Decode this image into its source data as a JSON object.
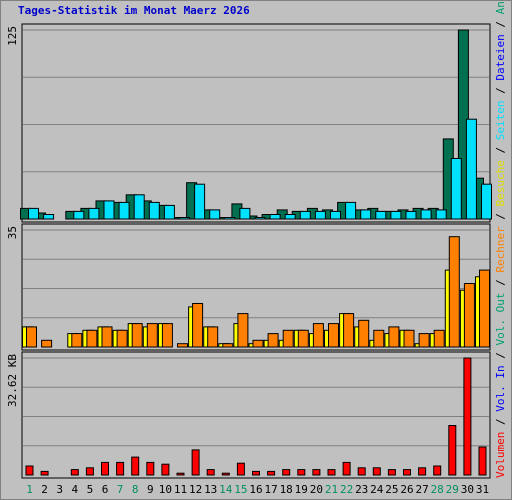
{
  "title": "Tages-Statistik im Monat Maerz 2026",
  "chart_data": {
    "type": "bar",
    "title": "Tages-Statistik im Monat Maerz 2026",
    "categories": [
      "1",
      "2",
      "3",
      "4",
      "5",
      "6",
      "7",
      "8",
      "9",
      "10",
      "11",
      "12",
      "13",
      "14",
      "15",
      "16",
      "17",
      "18",
      "19",
      "20",
      "21",
      "22",
      "23",
      "24",
      "25",
      "26",
      "27",
      "28",
      "29",
      "30",
      "31"
    ],
    "weekend_days": [
      "1",
      "7",
      "8",
      "14",
      "15",
      "21",
      "22",
      "28",
      "29"
    ],
    "panels": [
      {
        "id": "hits",
        "ymax_label": "125",
        "ymax": 125,
        "series": [
          {
            "name": "Anfragen",
            "color": "#007050",
            "values": [
              7,
              4,
              0,
              5,
              7,
              12,
              11,
              16,
              12,
              9,
              1,
              24,
              6,
              1,
              10,
              2,
              3,
              6,
              5,
              7,
              6,
              11,
              6,
              7,
              5,
              6,
              7,
              7,
              53,
              125,
              27
            ]
          },
          {
            "name": "Dateien",
            "color": "#00a0a0",
            "values": [
              0,
              0,
              0,
              0,
              0,
              0,
              0,
              0,
              0,
              0,
              0,
              0,
              0,
              0,
              0,
              0,
              0,
              0,
              0,
              0,
              0,
              0,
              0,
              0,
              0,
              0,
              0,
              0,
              0,
              0,
              0
            ]
          },
          {
            "name": "Seiten",
            "color": "#00e0ff",
            "values": [
              7,
              3,
              0,
              5,
              7,
              12,
              11,
              16,
              11,
              9,
              1,
              23,
              6,
              1,
              7,
              1,
              3,
              3,
              5,
              5,
              5,
              11,
              6,
              5,
              5,
              5,
              6,
              6,
              40,
              66,
              23
            ]
          }
        ],
        "legend_entries": [
          "Anfragen",
          "Dateien",
          "Seiten"
        ]
      },
      {
        "id": "visits",
        "ymax_label": "35",
        "ymax": 35,
        "series": [
          {
            "name": "Besuche",
            "color": "#ffff00",
            "values": [
              6,
              0,
              0,
              4,
              5,
              6,
              5,
              7,
              6,
              7,
              0,
              12,
              6,
              1,
              7,
              1,
              2,
              2,
              5,
              4,
              5,
              10,
              6,
              2,
              4,
              5,
              1,
              4,
              23,
              17,
              21
            ]
          },
          {
            "name": "Rechner",
            "color": "#ff8000",
            "values": [
              6,
              2,
              0,
              4,
              5,
              6,
              5,
              7,
              7,
              7,
              1,
              13,
              6,
              1,
              10,
              2,
              4,
              5,
              5,
              7,
              7,
              10,
              8,
              5,
              6,
              5,
              4,
              5,
              33,
              19,
              23
            ]
          }
        ],
        "legend_entries": [
          "Besuche",
          "Rechner"
        ]
      },
      {
        "id": "volume",
        "ymax_label": "32.62 KB",
        "ymax": 32.62,
        "series": [
          {
            "name": "Volumen",
            "color": "#ff0000",
            "values": [
              2.5,
              1,
              0,
              1.5,
              2,
              3.5,
              3.5,
              5,
              3.5,
              3,
              0.5,
              7,
              1.5,
              0.5,
              3.3,
              1,
              1,
              1.5,
              1.5,
              1.5,
              1.5,
              3.5,
              2,
              2,
              1.5,
              1.5,
              2,
              2.5,
              13.8,
              32.62,
              7.8
            ]
          }
        ],
        "legend_entries": [
          "Volumen",
          "Vol. In",
          "Vol. Out"
        ]
      }
    ],
    "legend_text": "Volumen / Vol. In / Vol. Out / Rechner / Besuche / Seiten / Dateien / Anfragen",
    "legend_colors": {
      "Volumen": "#ff0000",
      "Vol. In": "#0000ff",
      "Vol. Out": "#00a070",
      "Rechner": "#ff8000",
      "Besuche": "#e0e000",
      "Seiten": "#00e0ff",
      "Dateien": "#0000ff",
      "Anfragen": "#00a070",
      "separator": "#000000"
    },
    "grid": true,
    "colors": {
      "panel_bg": "#c0c0c0",
      "gridline": "#808080",
      "axis_labels": "#000000",
      "weekday_label": "#000000",
      "weekend_label": "#009060",
      "bar_outline": "#000000"
    }
  }
}
